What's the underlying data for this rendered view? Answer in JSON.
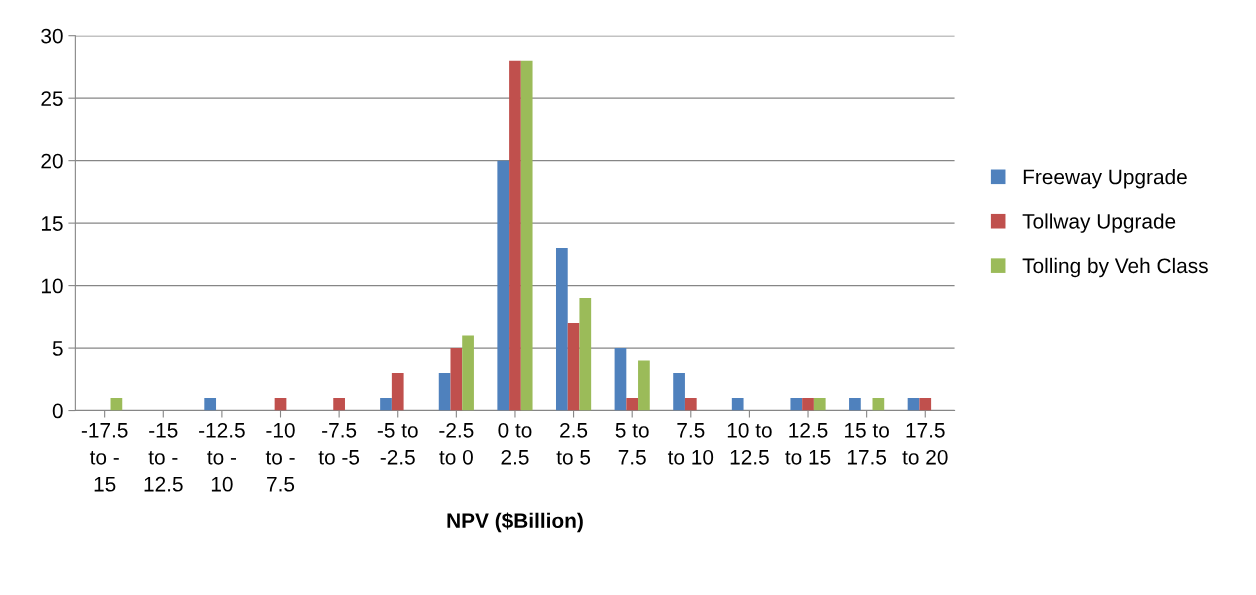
{
  "chart_data": {
    "type": "bar",
    "xlabel": "NPV ($Billion)",
    "categories": [
      "-17.5\nto -\n15",
      "-15\nto -\n12.5",
      "-12.5\nto -\n10",
      "-10\nto -\n7.5",
      "-7.5\nto -5",
      "-5 to\n-2.5",
      "-2.5\nto 0",
      "0 to\n2.5",
      "2.5\nto 5",
      "5 to\n7.5",
      "7.5\nto 10",
      "10 to\n12.5",
      "12.5\nto 15",
      "15 to\n17.5",
      "17.5\nto 20"
    ],
    "series": [
      {
        "name": "Freeway Upgrade",
        "color": "#4f81bd",
        "values": [
          0,
          0,
          1,
          0,
          0,
          1,
          3,
          20,
          13,
          5,
          3,
          1,
          1,
          1,
          1
        ]
      },
      {
        "name": "Tollway Upgrade",
        "color": "#c0504d",
        "values": [
          0,
          0,
          0,
          1,
          1,
          3,
          5,
          28,
          7,
          1,
          1,
          0,
          1,
          0,
          1
        ]
      },
      {
        "name": "Tolling by Veh Class",
        "color": "#9bbb59",
        "values": [
          1,
          0,
          0,
          0,
          0,
          0,
          6,
          28,
          9,
          4,
          0,
          0,
          1,
          1,
          0
        ]
      }
    ],
    "ylim": [
      0,
      30
    ],
    "yticks": [
      0,
      5,
      10,
      15,
      20,
      25,
      30
    ],
    "grid": "y",
    "legend": "right"
  }
}
